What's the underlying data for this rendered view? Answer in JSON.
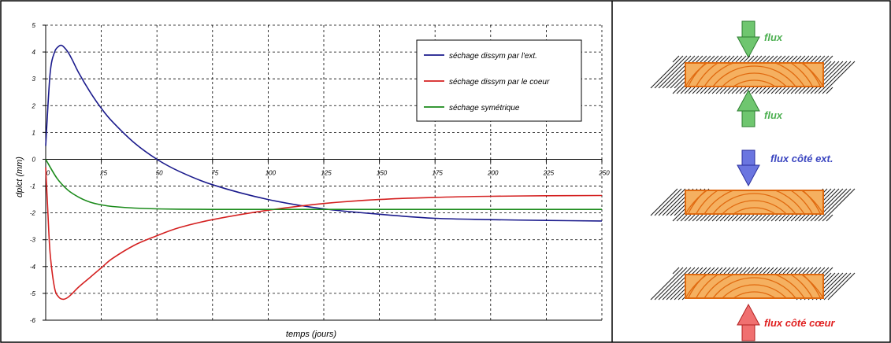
{
  "chart_data": {
    "type": "line",
    "xlabel": "temps (jours)",
    "ylabel": "dplct (mm)",
    "xlim": [
      0,
      250
    ],
    "ylim": [
      -6,
      5
    ],
    "xticks": [
      "0",
      "25",
      "50",
      "75",
      "100",
      "125",
      "150",
      "175",
      "200",
      "225",
      "250"
    ],
    "yticks": [
      "5",
      "4",
      "3",
      "2",
      "1",
      "0",
      "-1",
      "-2",
      "-3",
      "-4",
      "-5",
      "-6"
    ],
    "grid": true,
    "legend_position": "top-right",
    "series": [
      {
        "name": "séchage dissym par l'ext.",
        "color": "#1a1a8c",
        "x": [
          0,
          2,
          4,
          6,
          7,
          8,
          10,
          12,
          15,
          20,
          25,
          30,
          40,
          50,
          60,
          75,
          100,
          125,
          150,
          175,
          200,
          225,
          250
        ],
        "y": [
          0.5,
          3.2,
          4.0,
          4.22,
          4.25,
          4.2,
          4.0,
          3.7,
          3.2,
          2.5,
          1.9,
          1.4,
          0.6,
          0.0,
          -0.45,
          -0.95,
          -1.5,
          -1.85,
          -2.05,
          -2.2,
          -2.25,
          -2.28,
          -2.3
        ]
      },
      {
        "name": "séchage dissym par le coeur",
        "color": "#d42020",
        "x": [
          0,
          1,
          2,
          4,
          6,
          8,
          10,
          12,
          15,
          20,
          25,
          30,
          40,
          50,
          60,
          75,
          100,
          125,
          150,
          175,
          200,
          225,
          250
        ],
        "y": [
          -0.3,
          -2.0,
          -3.5,
          -4.8,
          -5.15,
          -5.22,
          -5.15,
          -5.0,
          -4.75,
          -4.4,
          -4.05,
          -3.7,
          -3.2,
          -2.85,
          -2.55,
          -2.25,
          -1.9,
          -1.65,
          -1.5,
          -1.42,
          -1.38,
          -1.36,
          -1.35
        ]
      },
      {
        "name": "séchage symétrique",
        "color": "#1a8a1a",
        "x": [
          0,
          5,
          10,
          15,
          20,
          25,
          30,
          40,
          50,
          60,
          75,
          100,
          125,
          150,
          175,
          200,
          225,
          250
        ],
        "y": [
          0,
          -0.7,
          -1.15,
          -1.42,
          -1.6,
          -1.7,
          -1.76,
          -1.82,
          -1.85,
          -1.86,
          -1.87,
          -1.87,
          -1.87,
          -1.87,
          -1.87,
          -1.87,
          -1.87,
          -1.87
        ]
      }
    ]
  },
  "diagram": {
    "top_flux_label": "flux",
    "bottom_flux_label": "flux",
    "ext_flux_label": "flux côté ext.",
    "core_flux_label": "flux côté cœur",
    "colors": {
      "green": "#4caf50",
      "blue": "#4a55d0",
      "red": "#e05050",
      "wood": "#f5b060",
      "grain": "#e06a10"
    }
  }
}
